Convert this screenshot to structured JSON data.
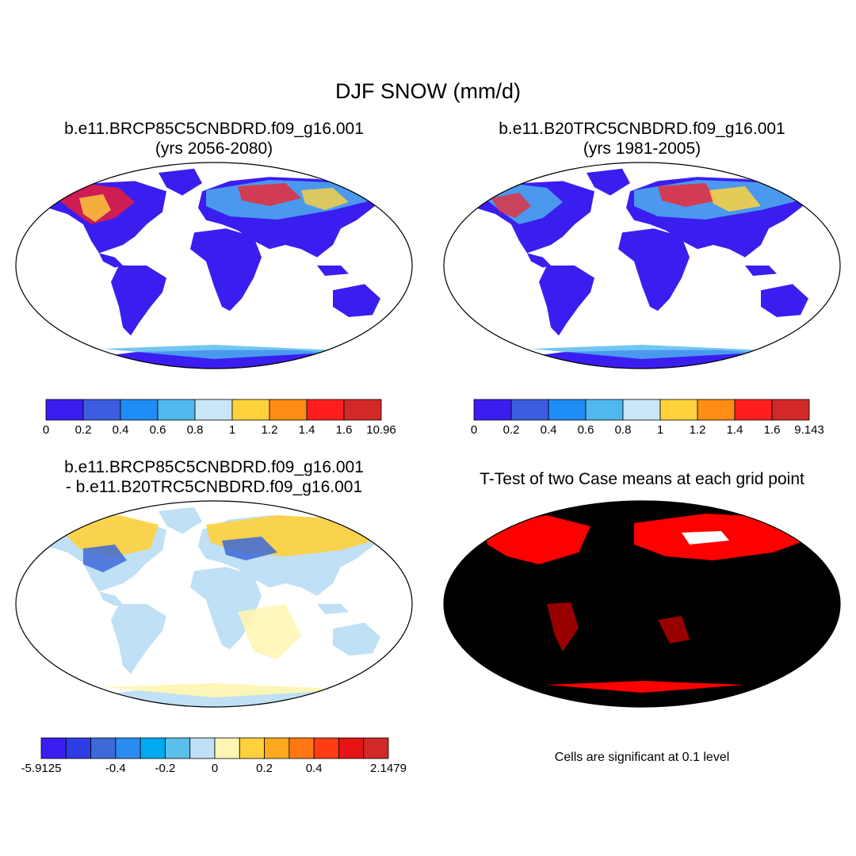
{
  "title": "DJF SNOW (mm/d)",
  "panels": [
    {
      "line1": "b.e11.BRCP85C5CNBDRD.f09_g16.001",
      "line2": "(yrs 2056-2080)"
    },
    {
      "line1": "b.e11.B20TRC5CNBDRD.f09_g16.001",
      "line2": "(yrs 1981-2005)"
    },
    {
      "line1": "b.e11.BRCP85C5CNBDRD.f09_g16.001",
      "line2": "- b.e11.B20TRC5CNBDRD.f09_g16.001"
    },
    {
      "line1": "T-Test of two Case means at each grid point",
      "line2": ""
    }
  ],
  "colorbar1": {
    "colors": [
      "#3a1ef0",
      "#3d5ce0",
      "#1e8cf5",
      "#4fb8ef",
      "#c8e6f5",
      "#ffd23c",
      "#ff8c14",
      "#ff1e1e",
      "#d22828"
    ],
    "labels": [
      "0",
      "0.2",
      "0.4",
      "0.6",
      "0.8",
      "1",
      "1.2",
      "1.4",
      "1.6",
      "10.96"
    ]
  },
  "colorbar2": {
    "colors": [
      "#3a1ef0",
      "#3d5ce0",
      "#1e8cf5",
      "#4fb8ef",
      "#c8e6f5",
      "#ffd23c",
      "#ff8c14",
      "#ff1e1e",
      "#d22828"
    ],
    "labels": [
      "0",
      "0.2",
      "0.4",
      "0.6",
      "0.8",
      "1",
      "1.2",
      "1.4",
      "1.6",
      "9.143"
    ]
  },
  "colorbar3": {
    "colors": [
      "#3a1ef0",
      "#2e3ce6",
      "#3d6ad8",
      "#2a8cf0",
      "#00aaf0",
      "#5abfeb",
      "#bfe0f5",
      "#fff5b4",
      "#ffd23c",
      "#ffaa1e",
      "#ff7814",
      "#ff3c14",
      "#e61414",
      "#d22828"
    ],
    "labels": [
      "-5.9125",
      "-0.4",
      "-0.2",
      "0",
      "0.2",
      "0.4",
      "2.1479"
    ]
  },
  "ttest_note": "Cells are significant at 0.1 level",
  "colors": {
    "land_base": "#3a1ef0",
    "diff_land": "#bfe0f5",
    "sig": "#ff0000"
  }
}
